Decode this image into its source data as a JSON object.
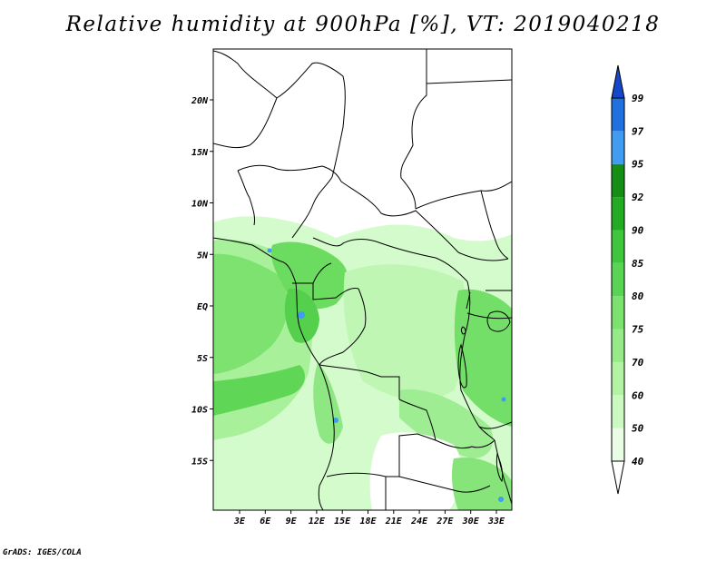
{
  "title": "Relative humidity at 900hPa [%], VT: 2019040218",
  "credit": "GrADS: IGES/COLA",
  "map": {
    "lat_labels": [
      "20N",
      "15N",
      "10N",
      "5N",
      "EQ",
      "5S",
      "10S",
      "15S"
    ],
    "lon_labels": [
      "3E",
      "6E",
      "9E",
      "12E",
      "15E",
      "18E",
      "21E",
      "24E",
      "27E",
      "30E",
      "33E"
    ]
  },
  "colorbar": {
    "levels": [
      "40",
      "50",
      "60",
      "70",
      "75",
      "80",
      "85",
      "90",
      "92",
      "95",
      "97",
      "99"
    ],
    "colors": [
      "#ffffff",
      "#e8fde4",
      "#cbf9c1",
      "#b2f3a4",
      "#96ea87",
      "#7ae26d",
      "#5ad455",
      "#3fc63c",
      "#23ab23",
      "#148e14",
      "#3f9cf0",
      "#2070e0",
      "#1548c8"
    ]
  }
}
